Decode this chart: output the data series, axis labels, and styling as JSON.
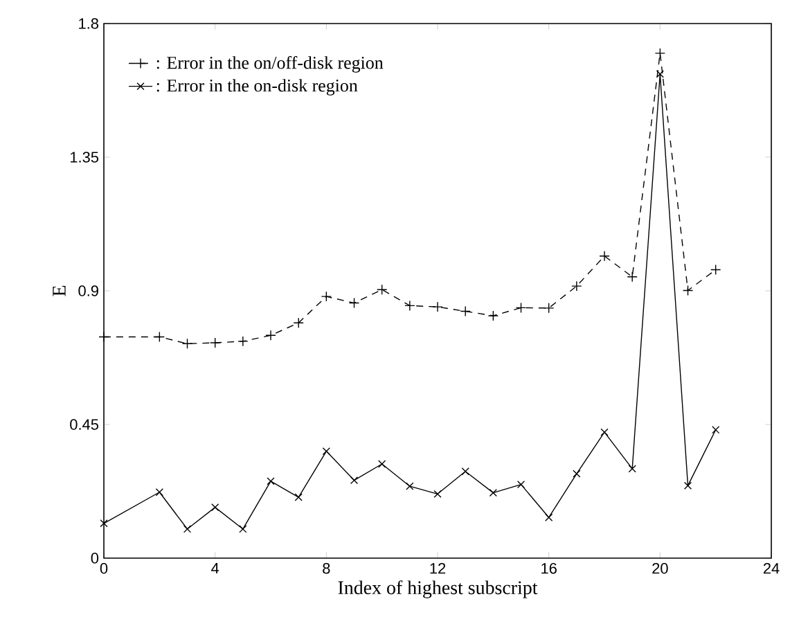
{
  "chart_data": {
    "type": "line",
    "xlabel": "Index of highest subscript",
    "ylabel": "E",
    "x": [
      0,
      2,
      3,
      4,
      5,
      6,
      7,
      8,
      9,
      10,
      11,
      12,
      13,
      14,
      15,
      16,
      17,
      18,
      19,
      20,
      21,
      22
    ],
    "series": [
      {
        "name": ": Error in the on/off-disk region",
        "color": "#000000",
        "marker": "plus",
        "line_style": "dashed",
        "values": [
          0.745,
          0.745,
          0.722,
          0.725,
          0.73,
          0.75,
          0.792,
          0.881,
          0.859,
          0.904,
          0.85,
          0.846,
          0.831,
          0.816,
          0.843,
          0.842,
          0.916,
          1.017,
          0.947,
          1.7,
          0.901,
          0.971
        ]
      },
      {
        "name": ": Error in the on-disk region",
        "color": "#000000",
        "marker": "cross",
        "line_style": "solid",
        "values": [
          0.117,
          0.222,
          0.098,
          0.171,
          0.098,
          0.259,
          0.205,
          0.36,
          0.262,
          0.317,
          0.242,
          0.216,
          0.292,
          0.22,
          0.248,
          0.137,
          0.284,
          0.424,
          0.301,
          1.63,
          0.244,
          0.432
        ]
      }
    ],
    "xlim": [
      0,
      24
    ],
    "ylim": [
      0,
      1.8
    ],
    "xticks": [
      0,
      4,
      8,
      12,
      16,
      20,
      24
    ],
    "yticks": [
      0,
      0.45,
      0.9,
      1.35,
      1.8
    ],
    "grid": false,
    "legend": "top left"
  }
}
